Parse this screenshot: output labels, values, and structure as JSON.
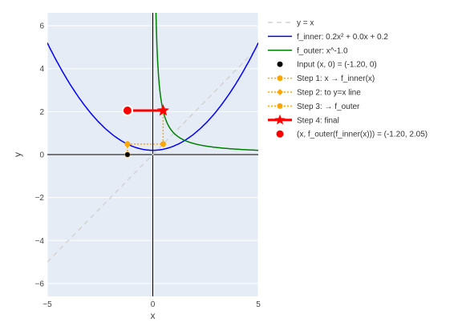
{
  "chart_data": {
    "type": "line",
    "xlabel": "x",
    "ylabel": "y",
    "xlim": [
      -5,
      5
    ],
    "ylim": [
      -6.6,
      6.6
    ],
    "x_ticks": [
      -5,
      0,
      5
    ],
    "y_ticks": [
      -6,
      -4,
      -2,
      0,
      2,
      4,
      6
    ],
    "x_tick_labels": [
      "−5",
      "0",
      "5"
    ],
    "y_tick_labels": [
      "−6",
      "−4",
      "−2",
      "0",
      "2",
      "4",
      "6"
    ],
    "grid": true,
    "legend_position": "right",
    "series": [
      {
        "name": "y = x",
        "kind": "dashed-line",
        "color": "#d3d3d3",
        "x": [
          -5,
          5
        ],
        "y": [
          -5,
          5
        ]
      },
      {
        "name": "f_inner: 0.2x² + 0.0x + 0.2",
        "kind": "function",
        "formula": "0.2x^2+0.0x+0.2",
        "color": "#0000ff",
        "domain": [
          -5,
          5
        ]
      },
      {
        "name": "f_outer: x^-1.0",
        "kind": "function",
        "formula": "x^-1.0",
        "color": "#008000",
        "domain": [
          0.15,
          5
        ]
      },
      {
        "name": "Input (x, 0) = (-1.20, 0)",
        "kind": "point",
        "color": "#000000",
        "x": [
          -1.2
        ],
        "y": [
          0
        ]
      },
      {
        "name": "Step 1: x → f_inner(x)",
        "kind": "step",
        "color": "#ffa500",
        "marker": "circle",
        "x": [
          -1.2,
          -1.2
        ],
        "y": [
          0,
          0.49
        ]
      },
      {
        "name": "Step 2: to y=x line",
        "kind": "step",
        "color": "#ffa500",
        "marker": "diamond",
        "x": [
          -1.2,
          0.49
        ],
        "y": [
          0.49,
          0.49
        ]
      },
      {
        "name": "Step 3: → f_outer",
        "kind": "step",
        "color": "#ffa500",
        "marker": "circle",
        "x": [
          0.49,
          0.49
        ],
        "y": [
          0.49,
          2.05
        ]
      },
      {
        "name": "Step 4: final",
        "kind": "final",
        "color": "#ff0000",
        "marker": "star",
        "x": [
          0.49,
          -1.2
        ],
        "y": [
          2.05,
          2.05
        ]
      },
      {
        "name": "(x, f_outer(f_inner(x))) = (-1.20, 2.05)",
        "kind": "result-point",
        "color": "#ff0000",
        "x": [
          -1.2
        ],
        "y": [
          2.05
        ]
      }
    ]
  }
}
